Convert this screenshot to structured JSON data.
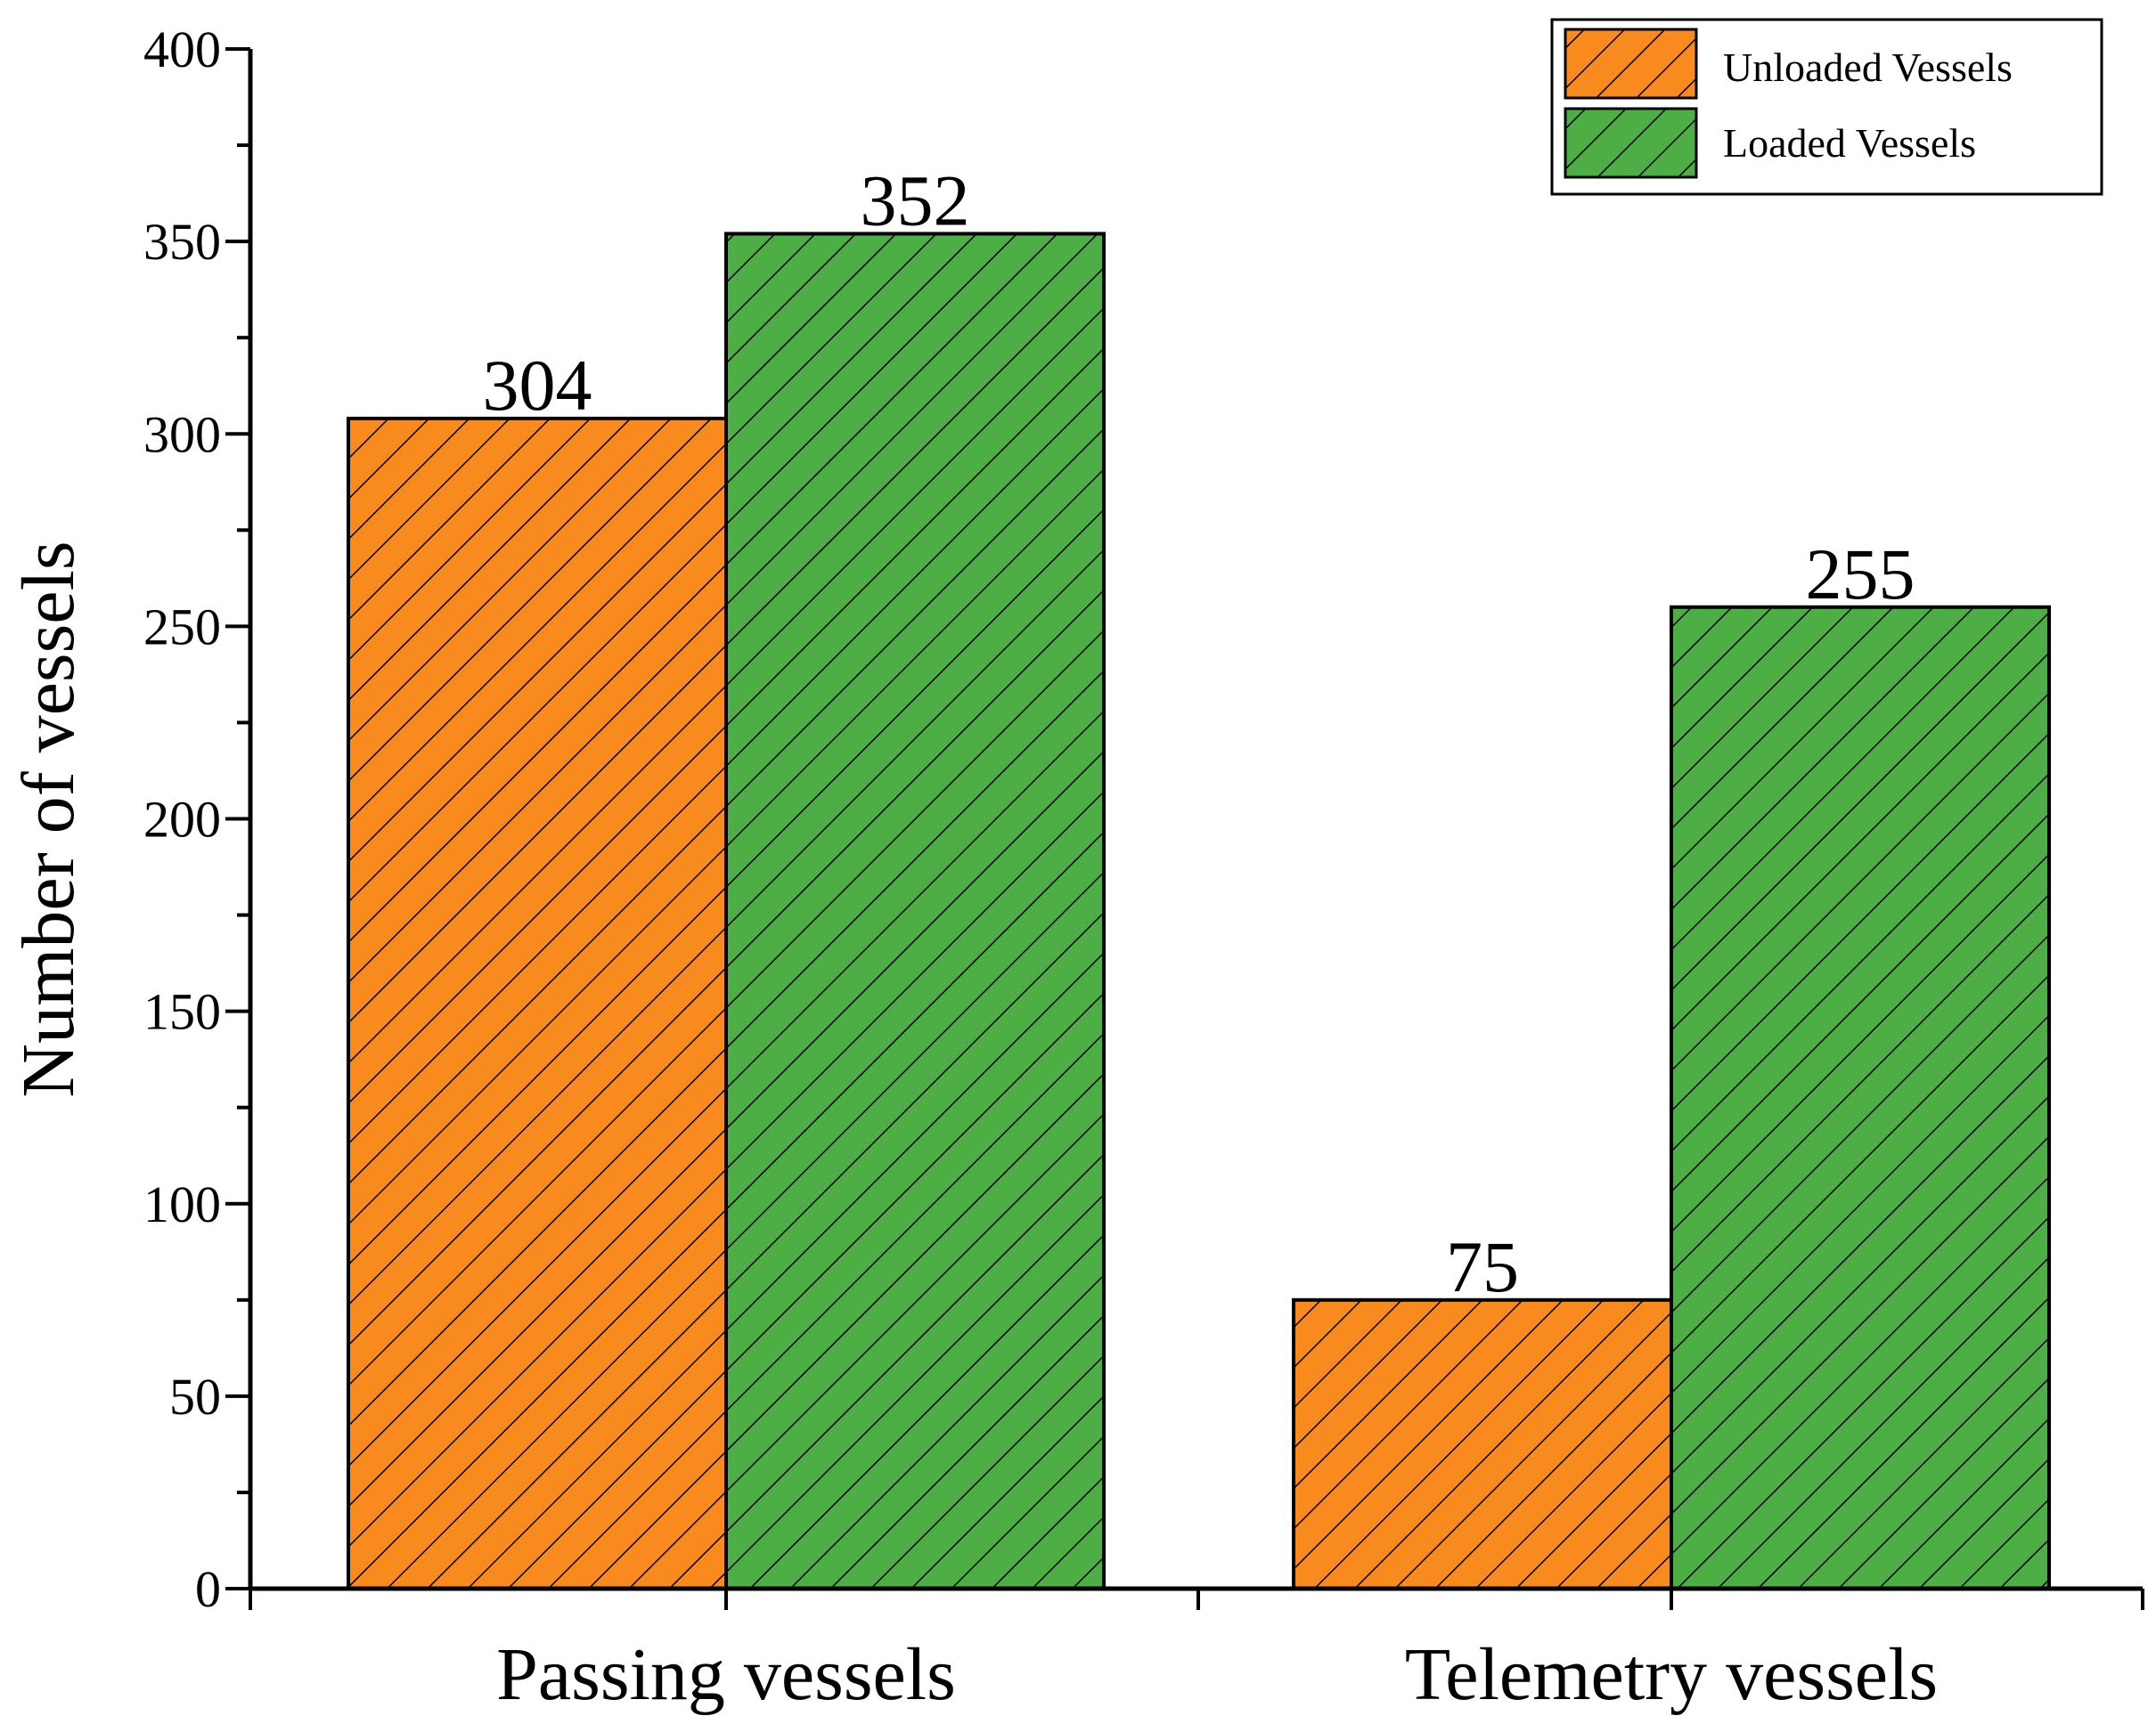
{
  "chart_data": {
    "type": "bar",
    "title": "",
    "xlabel": "",
    "ylabel": "Number of vessels",
    "categories": [
      "Passing vessels",
      "Telemetry vessels"
    ],
    "series": [
      {
        "name": "Unloaded Vessels",
        "values": [
          304,
          75
        ],
        "color": "#F98A1E",
        "pattern": "hatch"
      },
      {
        "name": "Loaded Vessels",
        "values": [
          352,
          255
        ],
        "color": "#4CAE45",
        "pattern": "hatch"
      }
    ],
    "data_labels": [
      "304",
      "352",
      "75",
      "255"
    ],
    "ylim": [
      0,
      400
    ],
    "yticks": [
      "0",
      "50",
      "100",
      "150",
      "200",
      "250",
      "300",
      "350",
      "400"
    ],
    "grid": false,
    "legend": "top-right"
  }
}
